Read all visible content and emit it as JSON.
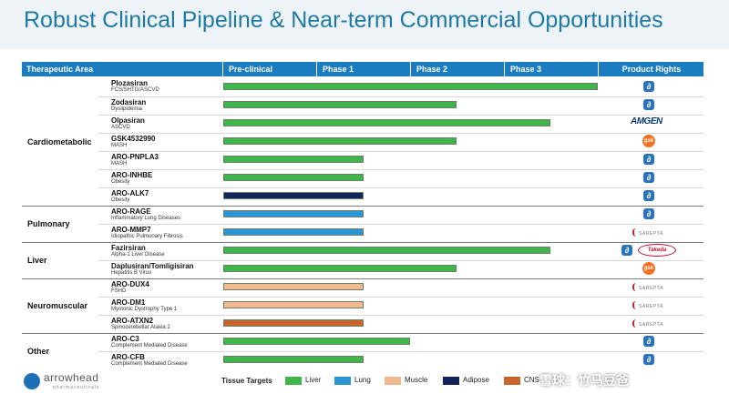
{
  "title": "Robust Clinical Pipeline & Near-term Commercial Opportunities",
  "header": {
    "therapeutic_area": "Therapeutic Area",
    "preclinical": "Pre-clinical",
    "phase1": "Phase 1",
    "phase2": "Phase 2",
    "phase3": "Phase 3",
    "rights": "Product Rights"
  },
  "areas": {
    "cardio": "Cardiometabolic",
    "pulmonary": "Pulmonary",
    "liver": "Liver",
    "neuro": "Neuromuscular",
    "other": "Other"
  },
  "programs": [
    {
      "name": "Plozasiran",
      "indication": "FCS/SHTG/ASCVD",
      "progress_phase": 3.9,
      "tissue": "Liver",
      "rights": [
        "Arrowhead"
      ]
    },
    {
      "name": "Zodasiran",
      "indication": "Dyslipidemia",
      "progress_phase": 2.5,
      "tissue": "Liver",
      "rights": [
        "Arrowhead"
      ]
    },
    {
      "name": "Olpasiran",
      "indication": "ASCVD",
      "progress_phase": 3.5,
      "tissue": "Liver",
      "rights": [
        "AMGEN"
      ]
    },
    {
      "name": "GSK4532990",
      "indication": "MASH",
      "progress_phase": 2.5,
      "tissue": "Liver",
      "rights": [
        "gsk"
      ]
    },
    {
      "name": "ARO-PNPLA3",
      "indication": "MASH",
      "progress_phase": 1.5,
      "tissue": "Liver",
      "rights": [
        "Arrowhead"
      ]
    },
    {
      "name": "ARO-INHBE",
      "indication": "Obesity",
      "progress_phase": 1.5,
      "tissue": "Liver",
      "rights": [
        "Arrowhead"
      ]
    },
    {
      "name": "ARO-ALK7",
      "indication": "Obesity",
      "progress_phase": 1.5,
      "tissue": "Adipose",
      "rights": [
        "Arrowhead"
      ]
    },
    {
      "name": "ARO-RAGE",
      "indication": "Inflammatory Lung Diseases",
      "progress_phase": 1.5,
      "tissue": "Lung",
      "rights": [
        "Arrowhead"
      ]
    },
    {
      "name": "ARO-MMP7",
      "indication": "Idiopathic Pulmonary Fibrosis",
      "progress_phase": 1.5,
      "tissue": "Lung",
      "rights": [
        "SAREPTA"
      ]
    },
    {
      "name": "Fazirsiran",
      "indication": "Alpha-1 Liver Disease",
      "progress_phase": 3.5,
      "tissue": "Liver",
      "rights": [
        "Arrowhead",
        "Takeda"
      ]
    },
    {
      "name": "Daplusiran/Tomligisiran",
      "indication": "Hepatitis B Virus",
      "progress_phase": 2.5,
      "tissue": "Liver",
      "rights": [
        "gsk"
      ]
    },
    {
      "name": "ARO-DUX4",
      "indication": "FSHD",
      "progress_phase": 1.5,
      "tissue": "Muscle",
      "rights": [
        "SAREPTA"
      ]
    },
    {
      "name": "ARO-DM1",
      "indication": "Myotonic Dystrophy Type 1",
      "progress_phase": 1.5,
      "tissue": "Muscle",
      "rights": [
        "SAREPTA"
      ]
    },
    {
      "name": "ARO-ATXN2",
      "indication": "Spinocerebellar Ataxia 2",
      "progress_phase": 1.5,
      "tissue": "CNS",
      "rights": [
        "SAREPTA"
      ]
    },
    {
      "name": "ARO-C3",
      "indication": "Complement Mediated Disease",
      "progress_phase": 2.0,
      "tissue": "Liver",
      "rights": [
        "Arrowhead"
      ]
    },
    {
      "name": "ARO-CFB",
      "indication": "Complement Mediated Disease",
      "progress_phase": 1.5,
      "tissue": "Liver",
      "rights": [
        "Arrowhead"
      ]
    }
  ],
  "rights_marks": {
    "amgen": "AMGEN",
    "gsk": "gsk",
    "sarepta": "SAREPTA",
    "takeda": "Takeda"
  },
  "footer": {
    "logo": "arrowhead",
    "logo_sub": "pharmaceuticals",
    "tissue_targets": "Tissue Targets",
    "legend": [
      "Liver",
      "Lung",
      "Muscle",
      "Adipose",
      "CNS"
    ],
    "watermark": "雪球：竹马豆爸"
  },
  "colors": {
    "header_bg": "#1c7cc0",
    "title": "#1f7aa3",
    "Liver": "#3fb54a",
    "Lung": "#2b96d3",
    "Muscle": "#f0b98e",
    "Adipose": "#13245a",
    "CNS": "#c8652d"
  }
}
